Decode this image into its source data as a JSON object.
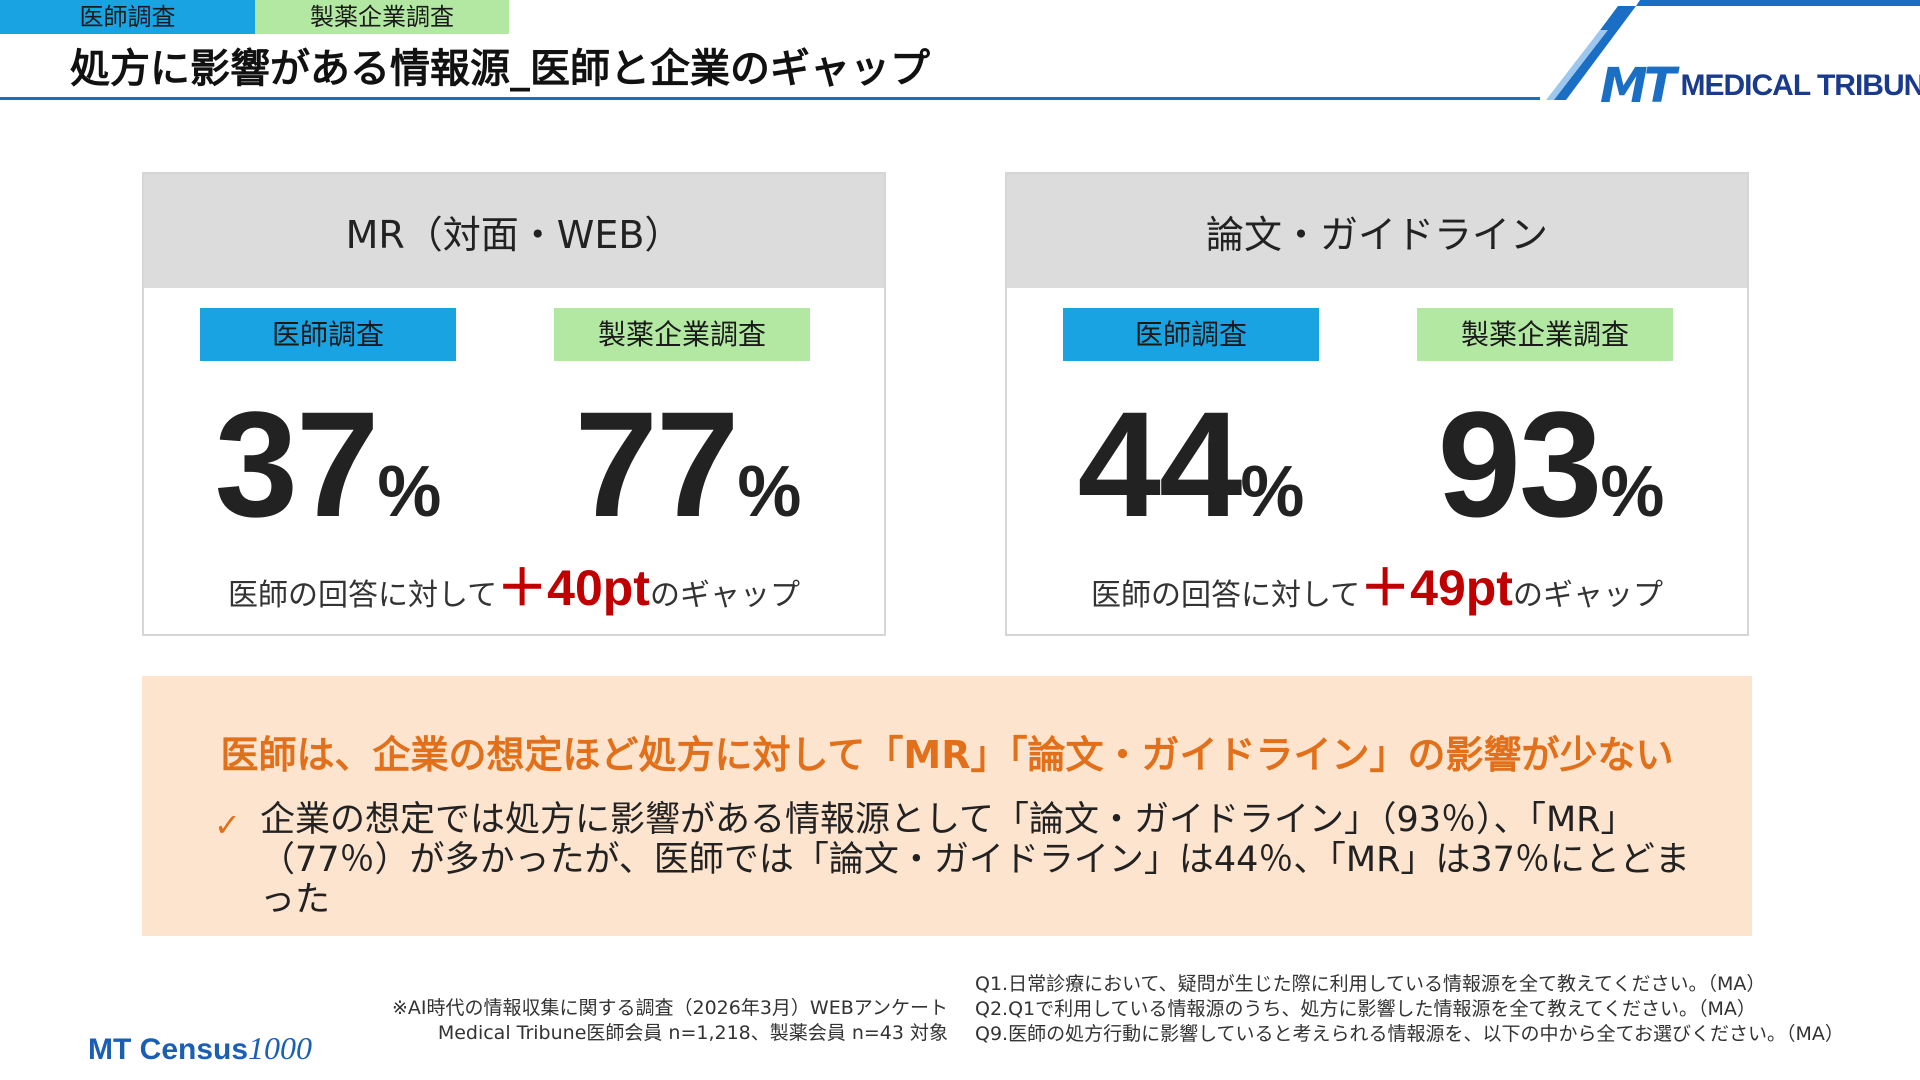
{
  "header": {
    "tab_doctor": "医師調査",
    "tab_company": "製薬企業調査",
    "title": "処方に影響がある情報源_医師と企業のギャップ",
    "logo_mark": "MT",
    "logo_text": "MEDICAL TRIBUNE"
  },
  "cards": [
    {
      "title": "MR（対面・WEB）",
      "doctor_label": "医師調査",
      "company_label": "製薬企業調査",
      "doctor_value": "37",
      "company_value": "77",
      "percent": "%",
      "gap_prefix": "医師の回答に対して",
      "gap_value": "＋40pt",
      "gap_suffix": "のギャップ"
    },
    {
      "title": "論文・ガイドライン",
      "doctor_label": "医師調査",
      "company_label": "製薬企業調査",
      "doctor_value": "44",
      "company_value": "93",
      "percent": "%",
      "gap_prefix": "医師の回答に対して",
      "gap_value": "＋49pt",
      "gap_suffix": "のギャップ"
    }
  ],
  "summary": {
    "headline": "医師は、企業の想定ほど処方に対して「MR」「論文・ガイドライン」の影響が少ない",
    "check_icon": "✓",
    "body": "企業の想定では処方に影響がある情報源として「論文・ガイドライン」（93％）、「MR」（77％）が多かったが、医師では「論文・ガイドライン」は44％、「MR」は37％にとどまった"
  },
  "footer": {
    "census_mt": "MT Census",
    "census_1000": "1000",
    "note_left_1": "※AI時代の情報収集に関する調査（2026年3月）WEBアンケート",
    "note_left_2": "Medical Tribune医師会員 n=1,218、製薬会員 n=43 対象",
    "q1": "Q1.日常診療において、疑問が生じた際に利用している情報源を全て教えてください。（MA）",
    "q2": "Q2.Q1で利用している情報源のうち、処方に影響した情報源を全て教えてください。（MA）",
    "q9": "Q9.医師の処方行動に影響していると考えられる情報源を、以下の中から全てお選びください。（MA）"
  },
  "colors": {
    "doctor": "#1aa3e3",
    "company": "#b3e8a3",
    "brand_blue": "#1a6fc4",
    "gap_red": "#c00000",
    "summary_bg": "#fde4ce",
    "summary_orange": "#e2701a"
  }
}
